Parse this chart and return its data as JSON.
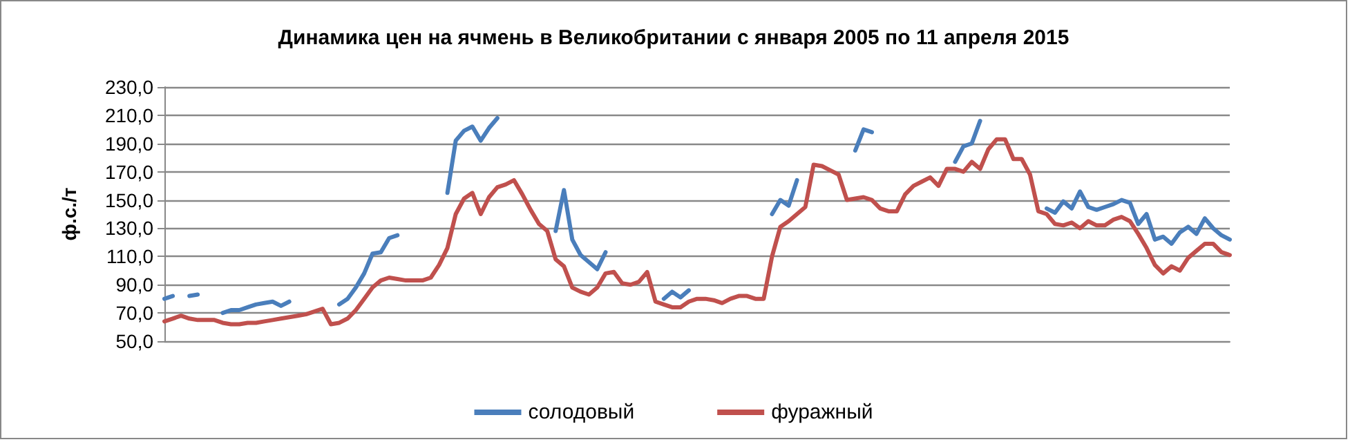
{
  "chart_data": {
    "type": "line",
    "title": "Динамика цен на ячмень в Великобритании с января 2005 по 11 апреля 2015",
    "ylabel": "ф.с./т",
    "categories": [
      null,
      null,
      null,
      null,
      null,
      null,
      null,
      null,
      null,
      null,
      null,
      null,
      null,
      null,
      null,
      null,
      null,
      null,
      null,
      null,
      null,
      null,
      null,
      null,
      null,
      null,
      null,
      null,
      null,
      null,
      null,
      null,
      null,
      null,
      null,
      null,
      null,
      null,
      null,
      null,
      null,
      null,
      null,
      null,
      null,
      null,
      null,
      null,
      null,
      null,
      null,
      null,
      null,
      null,
      null,
      null,
      null,
      null,
      null,
      null,
      null,
      null,
      null,
      null,
      null,
      null,
      null,
      null,
      null,
      null,
      null,
      null,
      null,
      null,
      null,
      null,
      null,
      null,
      null,
      null,
      null,
      null,
      null,
      null,
      null,
      null,
      null,
      null,
      null,
      null,
      null,
      null,
      null,
      null,
      null,
      null,
      null,
      null,
      null,
      null,
      null,
      null,
      null,
      null,
      null,
      null,
      null,
      null,
      null,
      null,
      null,
      null,
      null,
      null,
      null,
      null,
      null,
      null,
      null,
      null,
      null,
      null,
      null,
      null,
      null,
      null,
      null,
      null,
      null
    ],
    "series": [
      {
        "name": "солодовый",
        "color": "#4a7ebb",
        "values": [
          80,
          82,
          null,
          82,
          83,
          null,
          null,
          70,
          72,
          72,
          74,
          76,
          77,
          78,
          75,
          78,
          null,
          null,
          null,
          null,
          null,
          76,
          80,
          88,
          98,
          112,
          113,
          123,
          125,
          null,
          null,
          null,
          null,
          null,
          155,
          192,
          199,
          202,
          192,
          201,
          208,
          null,
          null,
          null,
          null,
          null,
          null,
          128,
          157,
          122,
          111,
          106,
          101,
          113,
          null,
          null,
          null,
          null,
          null,
          null,
          80,
          85,
          81,
          86,
          null,
          null,
          null,
          null,
          null,
          null,
          null,
          null,
          null,
          140,
          150,
          146,
          164,
          null,
          null,
          null,
          null,
          null,
          null,
          185,
          200,
          198,
          null,
          null,
          null,
          null,
          null,
          null,
          null,
          null,
          null,
          177,
          188,
          190,
          206,
          null,
          null,
          null,
          null,
          null,
          null,
          null,
          144,
          141,
          149,
          144,
          156,
          145,
          143,
          145,
          147,
          150,
          148,
          133,
          140,
          122,
          124,
          119,
          127,
          131,
          126,
          137,
          130,
          125,
          122
        ]
      },
      {
        "name": "фуражный",
        "color": "#c0504d",
        "values": [
          64,
          66,
          68,
          66,
          65,
          65,
          65,
          63,
          62,
          62,
          63,
          63,
          64,
          65,
          66,
          67,
          68,
          69,
          71,
          73,
          62,
          63,
          66,
          72,
          80,
          88,
          93,
          95,
          94,
          93,
          93,
          93,
          95,
          104,
          116,
          140,
          151,
          155,
          140,
          152,
          159,
          161,
          164,
          154,
          143,
          133,
          128,
          108,
          103,
          88,
          85,
          83,
          88,
          98,
          99,
          91,
          90,
          92,
          99,
          78,
          76,
          74,
          74,
          78,
          80,
          80,
          79,
          77,
          80,
          82,
          82,
          80,
          80,
          110,
          131,
          135,
          140,
          145,
          175,
          174,
          171,
          168,
          150,
          151,
          152,
          150,
          144,
          142,
          142,
          154,
          160,
          163,
          166,
          160,
          172,
          172,
          170,
          177,
          172,
          186,
          193,
          193,
          179,
          179,
          168,
          142,
          140,
          133,
          132,
          134,
          130,
          135,
          132,
          132,
          136,
          138,
          135,
          126,
          116,
          104,
          98,
          103,
          100,
          109,
          114,
          119,
          119,
          113,
          111
        ]
      }
    ],
    "ylim": [
      50,
      230
    ],
    "yticks": [
      {
        "value": 50,
        "label": "50,0"
      },
      {
        "value": 70,
        "label": "70,0"
      },
      {
        "value": 90,
        "label": "90,0"
      },
      {
        "value": 110,
        "label": "110,0"
      },
      {
        "value": 130,
        "label": "130,0"
      },
      {
        "value": 150,
        "label": "150,0"
      },
      {
        "value": 170,
        "label": "170,0"
      },
      {
        "value": 190,
        "label": "190,0"
      },
      {
        "value": 210,
        "label": "210,0"
      },
      {
        "value": 230,
        "label": "230,0"
      }
    ],
    "grid": "y",
    "legend": "bottom",
    "marker": "none",
    "line_style": "solid"
  }
}
